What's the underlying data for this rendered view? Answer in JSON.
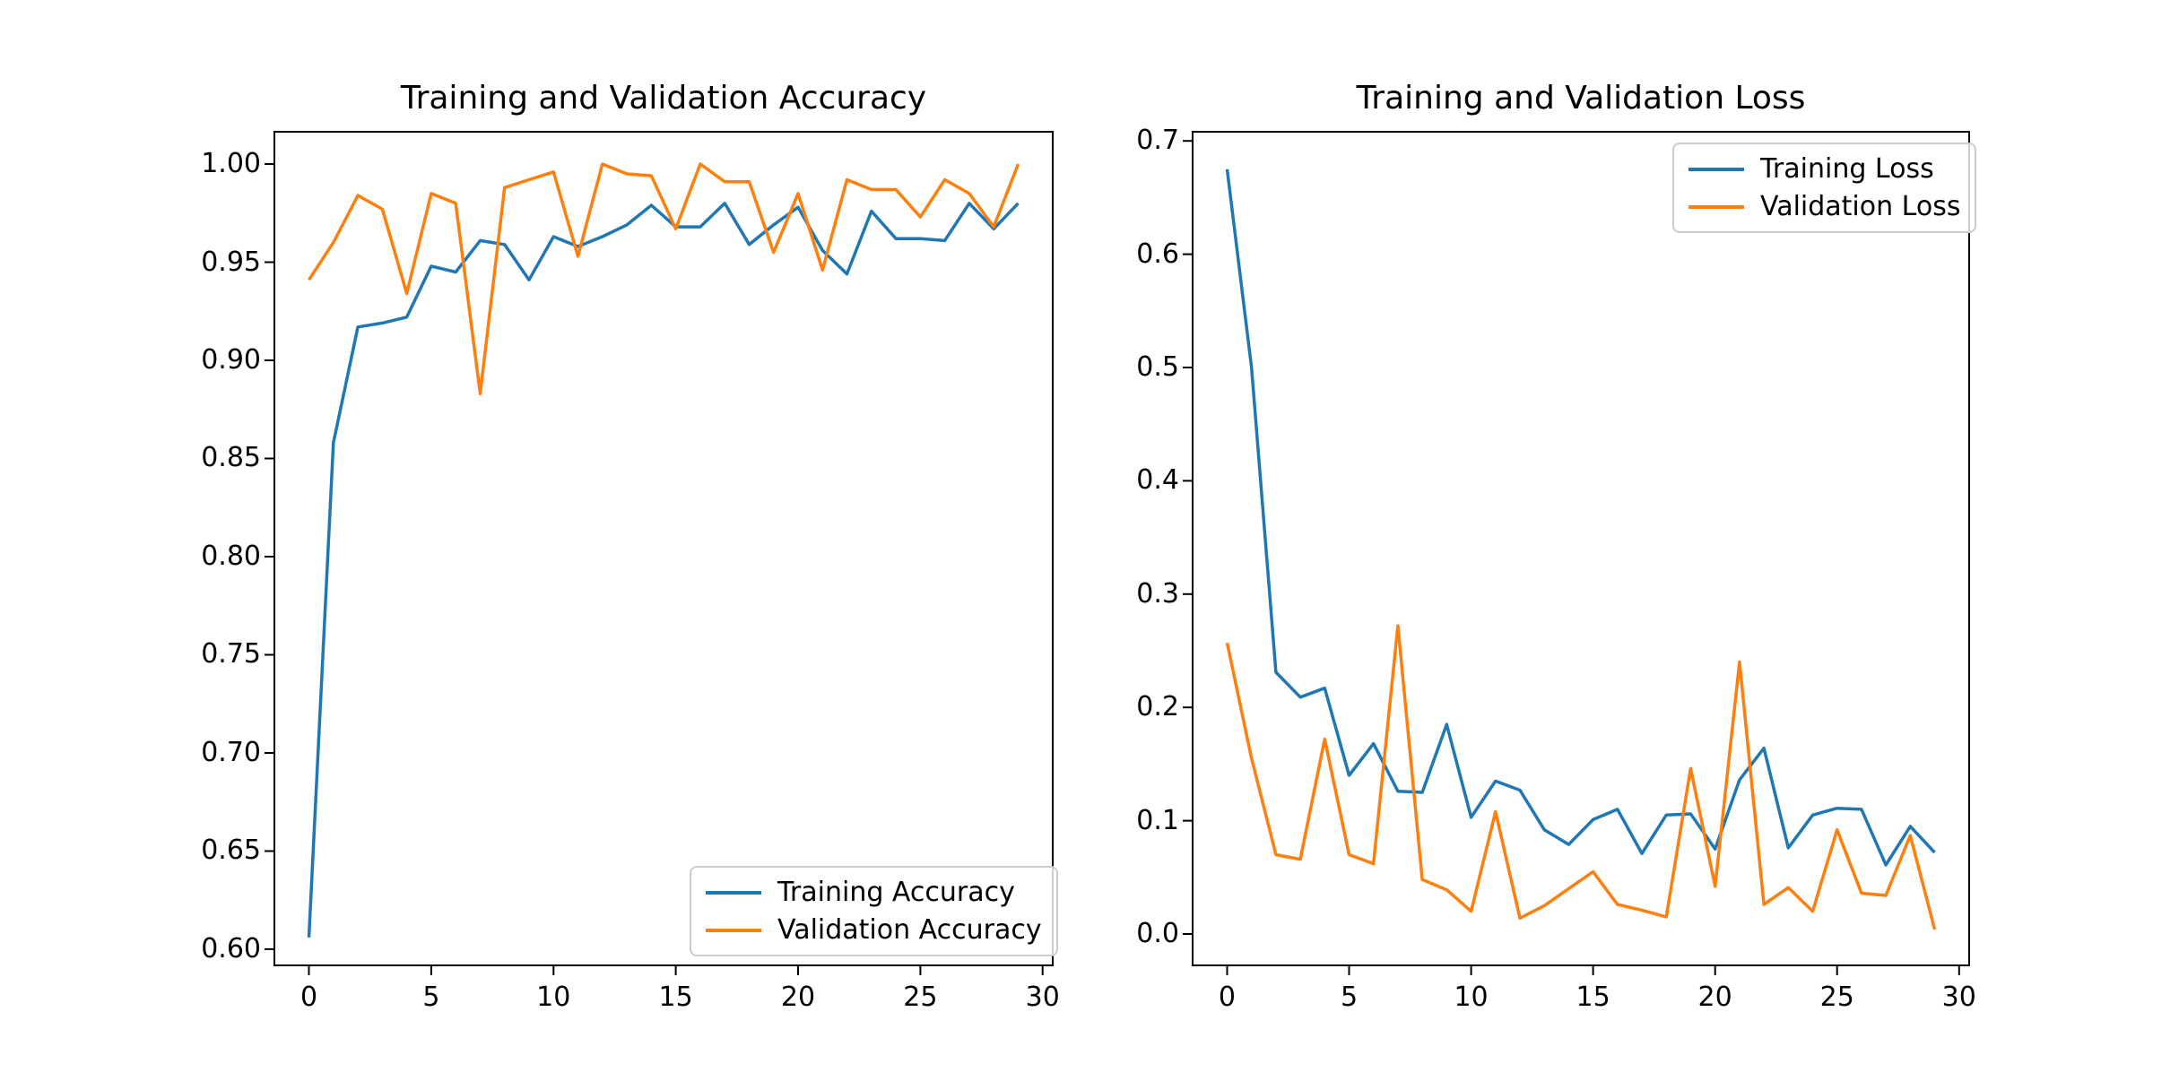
{
  "figure": {
    "background": "#ffffff",
    "accent_blue": "#1f77b4",
    "accent_orange": "#ff7f0e"
  },
  "chart_data": [
    {
      "type": "line",
      "title": "Training and Validation Accuracy",
      "xlabel": "",
      "ylabel": "",
      "grid": false,
      "legend_position": "lower right",
      "x": [
        0,
        1,
        2,
        3,
        4,
        5,
        6,
        7,
        8,
        9,
        10,
        11,
        12,
        13,
        14,
        15,
        16,
        17,
        18,
        19,
        20,
        21,
        22,
        23,
        24,
        25,
        26,
        27,
        28,
        29
      ],
      "series": [
        {
          "name": "Training Accuracy",
          "slug": "training-accuracy",
          "color": "#1f77b4",
          "values": [
            0.606,
            0.858,
            0.917,
            0.919,
            0.922,
            0.948,
            0.945,
            0.961,
            0.959,
            0.941,
            0.963,
            0.958,
            0.963,
            0.969,
            0.979,
            0.968,
            0.968,
            0.98,
            0.959,
            0.969,
            0.978,
            0.956,
            0.944,
            0.976,
            0.962,
            0.962,
            0.961,
            0.98,
            0.967,
            0.98
          ]
        },
        {
          "name": "Validation Accuracy",
          "slug": "validation-accuracy",
          "color": "#ff7f0e",
          "values": [
            0.941,
            0.96,
            0.984,
            0.977,
            0.934,
            0.985,
            0.98,
            0.883,
            0.988,
            0.992,
            0.996,
            0.953,
            1.0,
            0.995,
            0.994,
            0.967,
            1.0,
            0.991,
            0.991,
            0.955,
            0.985,
            0.946,
            0.992,
            0.987,
            0.987,
            0.973,
            0.992,
            0.985,
            0.968,
            1.0
          ]
        }
      ],
      "xlim": [
        -1.45,
        30.45
      ],
      "ylim": [
        0.5913,
        1.0169
      ],
      "xticks": [
        0,
        5,
        10,
        15,
        20,
        25,
        30
      ],
      "xtick_labels": [
        "0",
        "5",
        "10",
        "15",
        "20",
        "25",
        "30"
      ],
      "yticks": [
        0.6,
        0.65,
        0.7,
        0.75,
        0.8,
        0.85,
        0.9,
        0.95,
        1.0
      ],
      "ytick_labels": [
        "0.60",
        "0.65",
        "0.70",
        "0.75",
        "0.80",
        "0.85",
        "0.90",
        "0.95",
        "1.00"
      ]
    },
    {
      "type": "line",
      "title": "Training and Validation Loss",
      "xlabel": "",
      "ylabel": "",
      "grid": false,
      "legend_position": "upper right",
      "x": [
        0,
        1,
        2,
        3,
        4,
        5,
        6,
        7,
        8,
        9,
        10,
        11,
        12,
        13,
        14,
        15,
        16,
        17,
        18,
        19,
        20,
        21,
        22,
        23,
        24,
        25,
        26,
        27,
        28,
        29
      ],
      "series": [
        {
          "name": "Training Loss",
          "slug": "training-loss",
          "color": "#1f77b4",
          "values": [
            0.675,
            0.5,
            0.231,
            0.209,
            0.217,
            0.14,
            0.168,
            0.126,
            0.125,
            0.185,
            0.103,
            0.135,
            0.127,
            0.092,
            0.079,
            0.101,
            0.11,
            0.071,
            0.105,
            0.106,
            0.075,
            0.136,
            0.164,
            0.076,
            0.105,
            0.111,
            0.11,
            0.061,
            0.095,
            0.072
          ]
        },
        {
          "name": "Validation Loss",
          "slug": "validation-loss",
          "color": "#ff7f0e",
          "values": [
            0.257,
            0.155,
            0.07,
            0.066,
            0.172,
            0.07,
            0.062,
            0.272,
            0.048,
            0.039,
            0.02,
            0.108,
            0.014,
            0.025,
            0.04,
            0.055,
            0.026,
            0.021,
            0.015,
            0.146,
            0.042,
            0.24,
            0.026,
            0.041,
            0.02,
            0.092,
            0.036,
            0.034,
            0.087,
            0.004
          ]
        }
      ],
      "xlim": [
        -1.45,
        30.45
      ],
      "ylim": [
        -0.0285,
        0.7089
      ],
      "xticks": [
        0,
        5,
        10,
        15,
        20,
        25,
        30
      ],
      "xtick_labels": [
        "0",
        "5",
        "10",
        "15",
        "20",
        "25",
        "30"
      ],
      "yticks": [
        0.0,
        0.1,
        0.2,
        0.3,
        0.4,
        0.5,
        0.6,
        0.7
      ],
      "ytick_labels": [
        "0.0",
        "0.1",
        "0.2",
        "0.3",
        "0.4",
        "0.5",
        "0.6",
        "0.7"
      ]
    }
  ]
}
